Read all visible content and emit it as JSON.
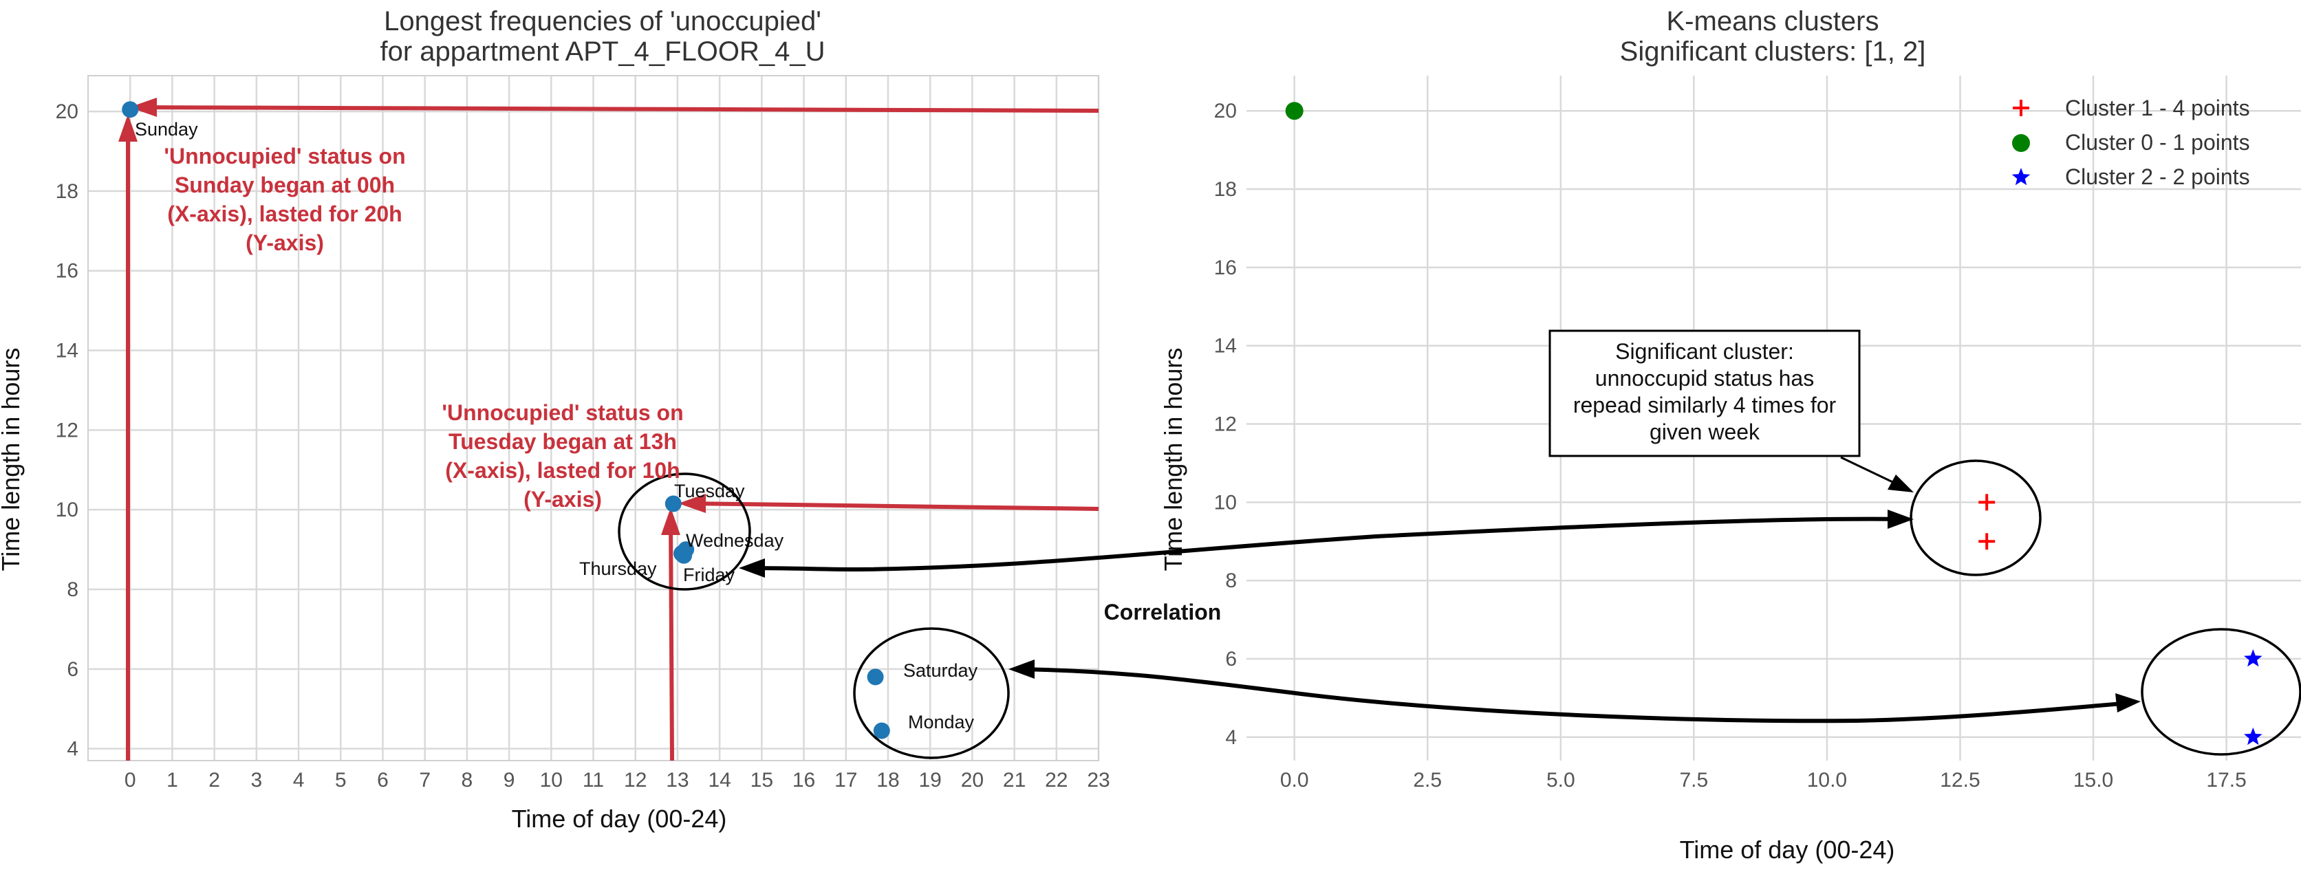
{
  "colors": {
    "grid": "#d9d9d9",
    "spine": "#d0d0d0",
    "point": "#1f77b4",
    "annot_red": "#c8323c",
    "cluster1": "#ff0000",
    "cluster0": "#008000",
    "cluster2": "#0000ff",
    "black": "#000000"
  },
  "chart_data": [
    {
      "type": "scatter",
      "title": [
        "Longest frequencies of 'unoccupied'",
        "for appartment APT_4_FLOOR_4_U"
      ],
      "xlabel": "Time of day (00-24)",
      "ylabel": "Time length in hours",
      "xlim": [
        -1,
        23
      ],
      "ylim": [
        3.7,
        20.9
      ],
      "xticks": [
        0,
        1,
        2,
        3,
        4,
        5,
        6,
        7,
        8,
        9,
        10,
        11,
        12,
        13,
        14,
        15,
        16,
        17,
        18,
        19,
        20,
        21,
        22,
        23
      ],
      "yticks": [
        4,
        6,
        8,
        10,
        12,
        14,
        16,
        18,
        20
      ],
      "grid": true,
      "points": [
        {
          "label": "Sunday",
          "x": 0,
          "y": 20.05
        },
        {
          "label": "Tuesday",
          "x": 12.9,
          "y": 10.15
        },
        {
          "label": "Wednesday",
          "x": 13.2,
          "y": 9.0
        },
        {
          "label": "Thursday",
          "x": 13.1,
          "y": 8.9
        },
        {
          "label": "Friday",
          "x": 13.15,
          "y": 8.85
        },
        {
          "label": "Saturday",
          "x": 17.7,
          "y": 5.8
        },
        {
          "label": "Monday",
          "x": 17.85,
          "y": 4.45
        }
      ],
      "annotations": [
        [
          "'Unnocupied' status on",
          "Sunday began at 00h",
          "(X-axis), lasted for 20h",
          "(Y-axis)"
        ],
        [
          "'Unnocupied' status on",
          "Tuesday began at 13h",
          "(X-axis), lasted for 10h",
          "(Y-axis)"
        ]
      ]
    },
    {
      "type": "scatter",
      "title": [
        "K-means clusters",
        "Significant clusters: [1, 2]"
      ],
      "xlabel": "Time of day (00-24)",
      "ylabel": "Time length in hours",
      "xlim": [
        -0.9,
        18.9
      ],
      "ylim": [
        3.4,
        20.9
      ],
      "xticks": [
        0.0,
        2.5,
        5.0,
        7.5,
        10.0,
        12.5,
        15.0,
        17.5
      ],
      "xtick_labels": [
        "0.0",
        "2.5",
        "5.0",
        "7.5",
        "10.0",
        "12.5",
        "15.0",
        "17.5"
      ],
      "yticks": [
        4,
        6,
        8,
        10,
        12,
        14,
        16,
        18,
        20
      ],
      "grid": true,
      "legend": "top-right",
      "series": [
        {
          "name": "Cluster 1 - 4 points",
          "marker": "plus",
          "color": "#ff0000",
          "points": [
            {
              "x": 13,
              "y": 10.0
            },
            {
              "x": 13,
              "y": 9.0
            }
          ]
        },
        {
          "name": "Cluster 0 - 1 points",
          "marker": "circle",
          "color": "#008000",
          "points": [
            {
              "x": 0,
              "y": 20.0
            }
          ]
        },
        {
          "name": "Cluster 2 - 2 points",
          "marker": "star",
          "color": "#0000ff",
          "points": [
            {
              "x": 18,
              "y": 6.0
            },
            {
              "x": 18,
              "y": 4.0
            }
          ]
        }
      ],
      "note": [
        "Significant cluster:",
        "unnoccupid status has",
        "repead similarly 4 times for",
        "given week"
      ]
    }
  ],
  "correlation_label": "Correlation"
}
